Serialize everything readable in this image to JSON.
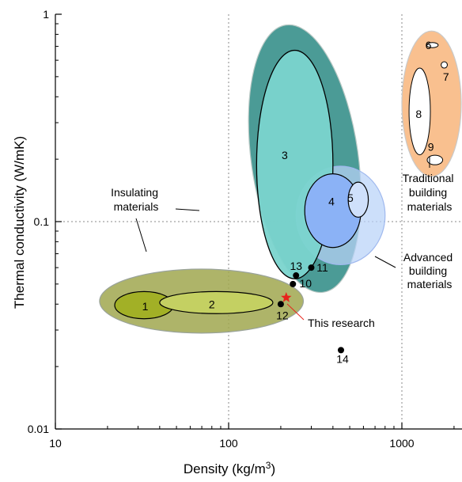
{
  "chart_data": {
    "type": "scatter",
    "xlabel": "Density (kg/m³)",
    "ylabel": "Thermal conductivity (W/mK)",
    "x_scale": "log",
    "y_scale": "log",
    "xlim": [
      10,
      2300
    ],
    "ylim": [
      0.01,
      1
    ],
    "x_ticks": [
      {
        "value": 10,
        "label": "10"
      },
      {
        "value": 100,
        "label": "100"
      },
      {
        "value": 1000,
        "label": "1000"
      }
    ],
    "y_ticks": [
      {
        "value": 0.01,
        "label": "0.01"
      },
      {
        "value": 0.1,
        "label": "0.1"
      },
      {
        "value": 1,
        "label": "1"
      }
    ],
    "reference_lines": {
      "x": [
        100,
        1000
      ],
      "y": [
        0.1
      ]
    },
    "regions": [
      {
        "id": "insulating",
        "kind": "group",
        "cx": 70,
        "cy": 0.042,
        "x_range": [
          18,
          270
        ],
        "y_range": [
          0.029,
          0.059
        ],
        "color": "#a0a74f"
      },
      {
        "id": "3",
        "kind": "group",
        "cx": 235,
        "cy": 0.2,
        "x_range": [
          135,
          560
        ],
        "y_range": [
          0.045,
          0.9
        ],
        "color": "#2c8a84"
      },
      {
        "id": "advanced",
        "kind": "group",
        "cx": 450,
        "cy": 0.115,
        "x_range": [
          245,
          800
        ],
        "y_range": [
          0.062,
          0.185
        ],
        "color": "#b8d2f8"
      },
      {
        "id": "traditional",
        "kind": "group",
        "cx": 1410,
        "cy": 0.28,
        "x_range": [
          1000,
          2200
        ],
        "y_range": [
          0.165,
          0.83
        ],
        "color": "#f9c08f"
      },
      {
        "id": "1",
        "kind": "material",
        "cx": 33,
        "cy": 0.039,
        "x_range": [
          22,
          48
        ],
        "y_range": [
          0.034,
          0.046
        ],
        "color": "#a2b026"
      },
      {
        "id": "2",
        "kind": "material",
        "cx": 80,
        "cy": 0.04,
        "x_range": [
          40,
          180
        ],
        "y_range": [
          0.036,
          0.046
        ],
        "color": "#c4d062"
      },
      {
        "id": "3-inner",
        "kind": "material",
        "label_id": "3",
        "cx": 200,
        "cy": 0.2,
        "x_range": [
          145,
          400
        ],
        "y_range": [
          0.053,
          0.67
        ],
        "color": "#7ad4ce"
      },
      {
        "id": "4",
        "kind": "material",
        "cx": 380,
        "cy": 0.125,
        "x_range": [
          275,
          580
        ],
        "y_range": [
          0.075,
          0.17
        ],
        "color": "#8bb2f6"
      },
      {
        "id": "5",
        "kind": "material",
        "cx": 560,
        "cy": 0.13,
        "x_range": [
          490,
          640
        ],
        "y_range": [
          0.105,
          0.155
        ],
        "color": "#cfe0fb"
      },
      {
        "id": "6",
        "kind": "material",
        "cx": 1500,
        "cy": 0.71,
        "x_range": [
          1390,
          1620
        ],
        "y_range": [
          0.69,
          0.73
        ],
        "color": "#ffffff"
      },
      {
        "id": "7",
        "kind": "material",
        "cx": 1760,
        "cy": 0.57,
        "x_range": [
          1685,
          1830
        ],
        "y_range": [
          0.55,
          0.59
        ],
        "color": "#ffffff"
      },
      {
        "id": "8",
        "kind": "material",
        "cx": 1250,
        "cy": 0.33,
        "x_range": [
          1100,
          1460
        ],
        "y_range": [
          0.21,
          0.55
        ],
        "color": "#ffffff"
      },
      {
        "id": "9",
        "kind": "material",
        "cx": 1550,
        "cy": 0.198,
        "x_range": [
          1400,
          1720
        ],
        "y_range": [
          0.188,
          0.209
        ],
        "color": "#ffffff"
      }
    ],
    "points": [
      {
        "id": "13",
        "x": 245,
        "y": 0.055
      },
      {
        "id": "11",
        "x": 300,
        "y": 0.06
      },
      {
        "id": "10",
        "x": 235,
        "y": 0.05
      },
      {
        "id": "12",
        "x": 200,
        "y": 0.04
      },
      {
        "id": "14",
        "x": 445,
        "y": 0.024
      }
    ],
    "highlight": {
      "label": "This research",
      "x": 215,
      "y": 0.043,
      "color": "#e8241c"
    },
    "annotations": [
      {
        "lines": [
          "Insulating",
          "materials"
        ]
      },
      {
        "lines": [
          "Traditional",
          "building",
          "materials"
        ]
      },
      {
        "lines": [
          "Advanced",
          "building",
          "materials"
        ]
      }
    ]
  }
}
